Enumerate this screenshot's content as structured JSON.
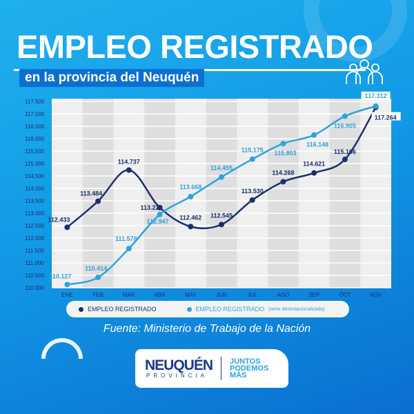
{
  "header": {
    "title": "EMPLEO REGISTRADO",
    "subtitle": "en la provincia del Neuquén"
  },
  "chart_data": {
    "type": "line",
    "title": "EMPLEO REGISTRADO",
    "categories": [
      "ENE",
      "FEB",
      "MAR",
      "ABR",
      "MAY",
      "JUN",
      "JUL",
      "AGO",
      "SEP",
      "OCT",
      "NOV"
    ],
    "ylim": [
      110000,
      117500
    ],
    "yticks": [
      "110.000",
      "110.500",
      "111.000",
      "111.500",
      "112.000",
      "112.500",
      "113.000",
      "113.500",
      "114.000",
      "114.500",
      "115.000",
      "115.500",
      "116.000",
      "116.500",
      "117.000",
      "117.500"
    ],
    "grid": true,
    "series": [
      {
        "name": "EMPLEO REGISTRADO",
        "color": "#1b2f6e",
        "values": [
          112433,
          113484,
          114737,
          113226,
          112462,
          112545,
          113530,
          114268,
          114621,
          115166,
          117264
        ],
        "labels": [
          "112.433",
          "113.484",
          "114.737",
          "113.226",
          "112.462",
          "112.545",
          "113.530",
          "114.268",
          "114.621",
          "115.166",
          "117.264"
        ]
      },
      {
        "name": "EMPLEO REGISTRADO",
        "note": "(serie desestacionalizada)",
        "color": "#2ea3dc",
        "values": [
          110127,
          110414,
          111578,
          112947,
          113668,
          114455,
          115175,
          115803,
          116148,
          116905,
          117312
        ],
        "labels": [
          "110.127",
          "110.414",
          "111.578",
          "112.947",
          "113.668",
          "114.455",
          "115.175",
          "115.803",
          "116.148",
          "116.905",
          "117.312"
        ]
      }
    ],
    "legend": "bottom"
  },
  "source": "Fuente: Ministerio de Trabajo de la Nación",
  "logo": {
    "name": "NEUQUÉN",
    "sub": "PROVINCIA",
    "slogan": [
      "JUNTOS",
      "PODEMOS",
      "MÁS"
    ]
  }
}
